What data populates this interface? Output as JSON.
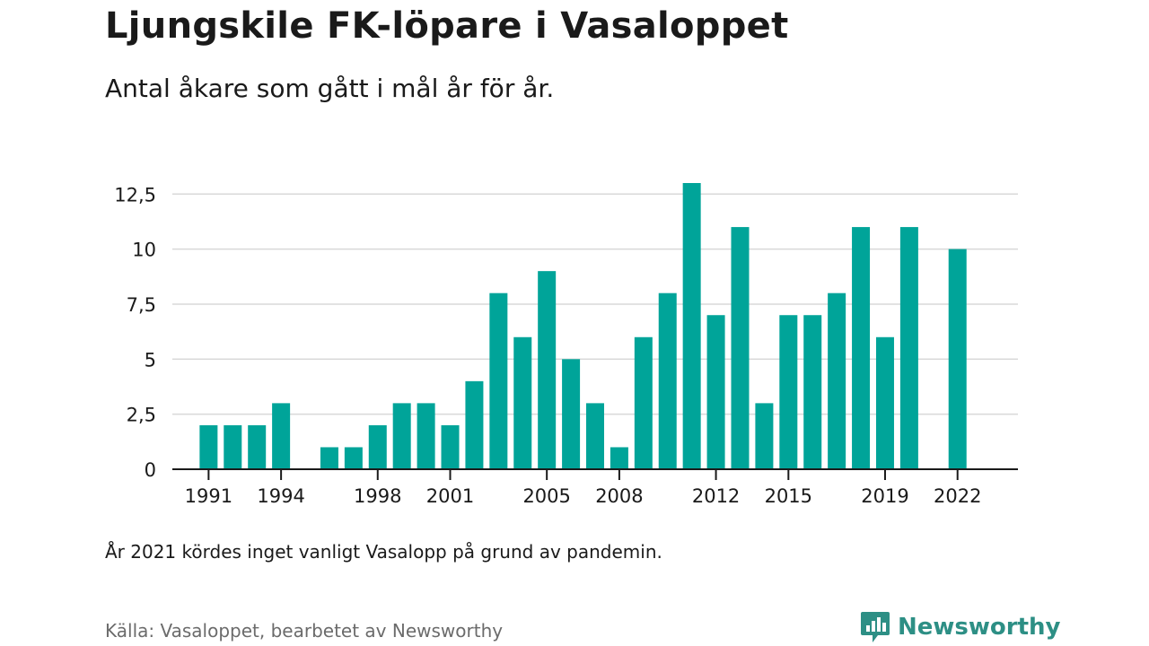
{
  "title": "Ljungskile FK-löpare i Vasaloppet",
  "subtitle": "Antal åkare som gått i mål år för år.",
  "note": "År 2021 kördes inget vanligt Vasalopp på grund av pandemin.",
  "source": "Källa: Vasaloppet, bearbetet av Newsworthy",
  "brand": {
    "name": "Newsworthy",
    "icon": "newsworthy-logo-icon",
    "color": "#2d8f85"
  },
  "chart_data": {
    "type": "bar",
    "title": "",
    "xlabel": "",
    "ylabel": "",
    "color": "#00a499",
    "ylim": [
      0,
      13
    ],
    "grid": true,
    "yticks": [
      {
        "value": 0,
        "label": "0"
      },
      {
        "value": 2.5,
        "label": "2,5"
      },
      {
        "value": 5,
        "label": "5"
      },
      {
        "value": 7.5,
        "label": "7,5"
      },
      {
        "value": 10,
        "label": "10"
      },
      {
        "value": 12.5,
        "label": "12,5"
      }
    ],
    "xticks": [
      1991,
      1994,
      1998,
      2001,
      2005,
      2008,
      2012,
      2015,
      2019,
      2022
    ],
    "xlim": [
      1989.5,
      2024.5
    ],
    "categories": [
      1991,
      1992,
      1993,
      1994,
      1996,
      1997,
      1998,
      1999,
      2000,
      2001,
      2002,
      2003,
      2004,
      2005,
      2006,
      2007,
      2008,
      2009,
      2010,
      2011,
      2012,
      2013,
      2014,
      2015,
      2016,
      2017,
      2018,
      2019,
      2020,
      2022
    ],
    "values": [
      2,
      2,
      2,
      3,
      1,
      1,
      2,
      3,
      3,
      2,
      4,
      8,
      6,
      9,
      5,
      3,
      1,
      6,
      8,
      13,
      7,
      11,
      3,
      7,
      7,
      8,
      11,
      6,
      11,
      10
    ]
  }
}
